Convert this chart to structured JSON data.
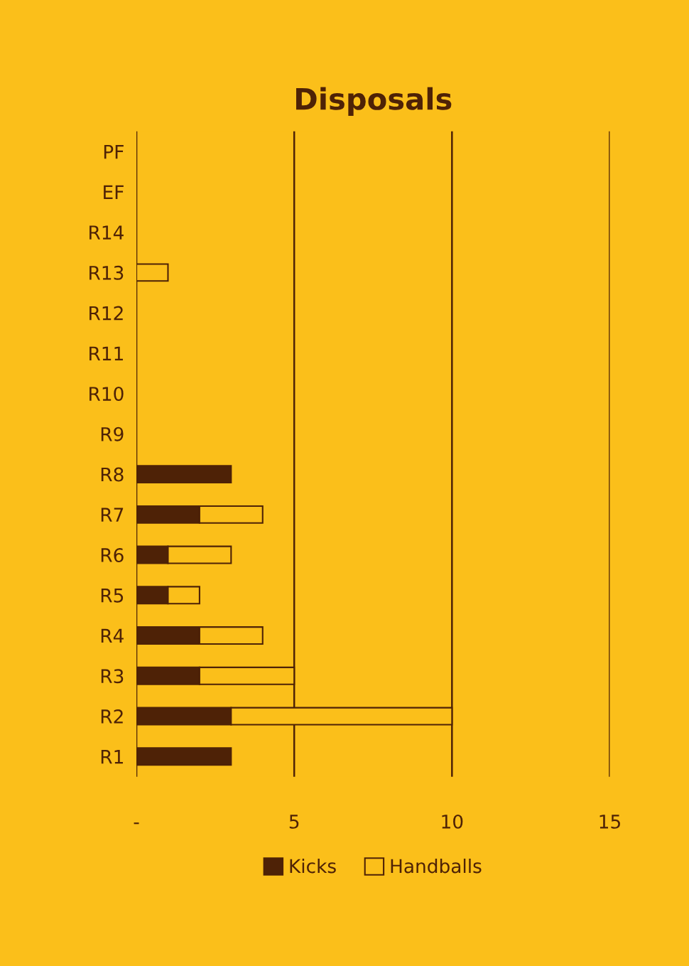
{
  "chart_data": {
    "type": "bar",
    "title": "Disposals",
    "orientation": "horizontal",
    "stacked": true,
    "categories": [
      "PF",
      "EF",
      "R14",
      "R13",
      "R12",
      "R11",
      "R10",
      "R9",
      "R8",
      "R7",
      "R6",
      "R5",
      "R4",
      "R3",
      "R2",
      "R1"
    ],
    "series": [
      {
        "name": "Kicks",
        "color": "#4e2206",
        "values": [
          null,
          null,
          null,
          null,
          null,
          null,
          null,
          null,
          3,
          2,
          1,
          1,
          2,
          2,
          3,
          3
        ]
      },
      {
        "name": "Handballs",
        "color": "#fbbf1a",
        "values": [
          null,
          null,
          null,
          1,
          null,
          null,
          null,
          null,
          null,
          2,
          2,
          1,
          2,
          3,
          7,
          null
        ]
      }
    ],
    "xlim": [
      0,
      15
    ],
    "xticks": [
      {
        "value": 0,
        "label": "-"
      },
      5,
      10,
      15
    ],
    "grid": "x",
    "legend": "bottom"
  }
}
